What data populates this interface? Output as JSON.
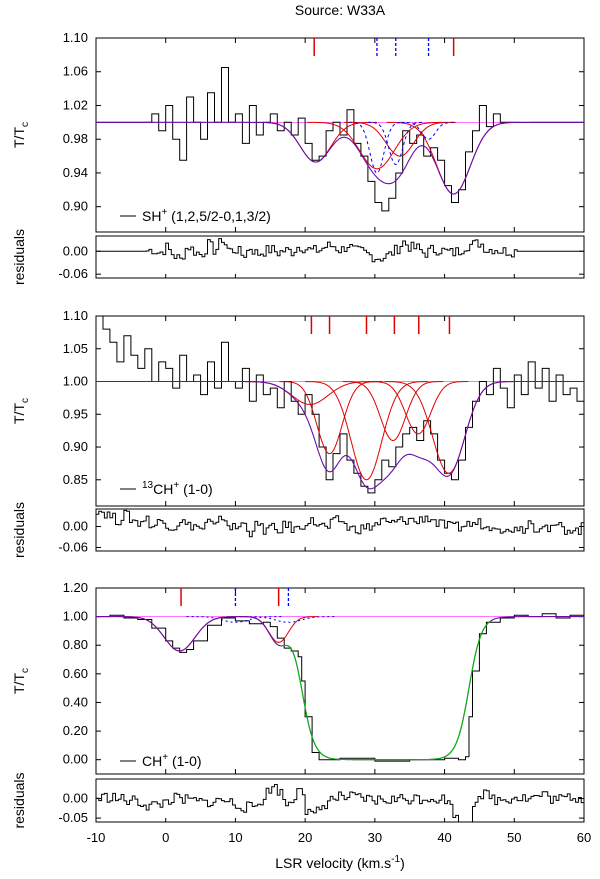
{
  "figure": {
    "title": "Source: W33A"
  },
  "xaxis": {
    "label": "LSR velocity (km.s-1)",
    "label_main": "LSR velocity (km.s",
    "label_sup": "-1",
    "label_close": ")",
    "min": -10,
    "max": 60,
    "ticks": [
      -10,
      0,
      10,
      20,
      30,
      40,
      50,
      60
    ]
  },
  "colors": {
    "data": "#000000",
    "fit_total": "#6a0dad",
    "component": "#e00000",
    "hfs": "#0000ff",
    "baseline": "#ff44ff",
    "alt_fit": "#00bb00"
  },
  "chart_data": [
    {
      "type": "line",
      "name": "SH+ panel",
      "legend_prefix": "SH",
      "legend_sup": "+",
      "legend_suffix": " (1,2,5/2-0,1,3/2)",
      "ylabel_main": "T/T",
      "ylabel_sub": "c",
      "ylim": [
        0.87,
        1.1
      ],
      "yticks": [
        0.9,
        0.94,
        0.98,
        1.02,
        1.06,
        1.1
      ],
      "ytick_labels": [
        "0.90",
        "0.94",
        "0.98",
        "1.02",
        "1.06",
        "1.10"
      ],
      "baseline": 1.0,
      "components": [
        {
          "v": 21.5,
          "depth": 0.047,
          "width": 2.2
        },
        {
          "v": 30.3,
          "depth": 0.055,
          "width": 2.5
        },
        {
          "v": 33.6,
          "depth": 0.04,
          "width": 2.0
        },
        {
          "v": 41.3,
          "depth": 0.085,
          "width": 2.4
        }
      ],
      "hfs_markers": [
        30.3,
        33.0,
        37.7
      ],
      "component_markers": [
        21.3,
        41.3
      ],
      "spectrum": {
        "x": [
          -3,
          -2,
          -1,
          0,
          1,
          2,
          3,
          4,
          5,
          6,
          7,
          8,
          9,
          10,
          11,
          12,
          13,
          14,
          15,
          16,
          17,
          18,
          19,
          20,
          21,
          22,
          23,
          24,
          25,
          26,
          27,
          28,
          29,
          30,
          31,
          32,
          33,
          34,
          35,
          36,
          37,
          38,
          39,
          40,
          41,
          42,
          43,
          44,
          45,
          46,
          47,
          48,
          49,
          50
        ],
        "y": [
          1.0,
          1.01,
          0.99,
          1.02,
          0.98,
          0.955,
          1.03,
          1.0,
          0.98,
          1.035,
          1.0,
          1.065,
          1.0,
          1.01,
          0.975,
          1.02,
          0.985,
          1.0,
          1.01,
          0.99,
          1.0,
          0.985,
          1.005,
          0.975,
          0.955,
          0.96,
          0.99,
          1.0,
          0.985,
          1.015,
          0.975,
          0.96,
          0.93,
          0.905,
          0.895,
          0.91,
          0.94,
          0.99,
          0.975,
          0.985,
          0.96,
          0.97,
          0.955,
          0.925,
          0.905,
          0.92,
          0.965,
          0.99,
          1.02,
          0.995,
          1.01,
          1.0,
          1.0,
          1.0
        ]
      },
      "residuals": {
        "ylim": [
          -0.07,
          0.04
        ],
        "yticks": [
          0.0,
          -0.06
        ],
        "ytick_labels": [
          "0.00",
          "-0.06"
        ]
      }
    },
    {
      "type": "line",
      "name": "13CH+ panel",
      "legend_presup": "13",
      "legend_prefix": "CH",
      "legend_sup": "+",
      "legend_suffix": " (1-0)",
      "ylabel_main": "T/T",
      "ylabel_sub": "c",
      "ylim": [
        0.81,
        1.1
      ],
      "yticks": [
        0.85,
        0.9,
        0.95,
        1.0,
        1.05,
        1.1
      ],
      "ytick_labels": [
        "0.85",
        "0.90",
        "0.95",
        "1.00",
        "1.05",
        "1.10"
      ],
      "baseline": 1.0,
      "components": [
        {
          "v": 20.7,
          "depth": 0.035,
          "width": 2.6
        },
        {
          "v": 23.5,
          "depth": 0.11,
          "width": 1.8
        },
        {
          "v": 28.8,
          "depth": 0.15,
          "width": 2.2
        },
        {
          "v": 32.6,
          "depth": 0.09,
          "width": 1.8
        },
        {
          "v": 36.2,
          "depth": 0.08,
          "width": 1.8
        },
        {
          "v": 40.6,
          "depth": 0.14,
          "width": 2.3
        }
      ],
      "component_markers": [
        20.9,
        23.5,
        28.8,
        32.8,
        36.3,
        40.7
      ],
      "spectrum": {
        "x": [
          -10,
          -9,
          -8,
          -7,
          -6,
          -5,
          -4,
          -3,
          -2,
          -1,
          0,
          1,
          2,
          3,
          4,
          5,
          6,
          7,
          8,
          9,
          10,
          11,
          12,
          13,
          14,
          15,
          16,
          17,
          18,
          19,
          20,
          21,
          22,
          23,
          24,
          25,
          26,
          27,
          28,
          29,
          30,
          31,
          32,
          33,
          34,
          35,
          36,
          37,
          38,
          39,
          40,
          41,
          42,
          43,
          44,
          45,
          46,
          47,
          48,
          49,
          50,
          51,
          52,
          53,
          54,
          55,
          56,
          57,
          58,
          59,
          60
        ],
        "y": [
          1.1,
          1.08,
          1.06,
          1.03,
          1.07,
          1.04,
          1.02,
          1.05,
          1.0,
          1.03,
          1.02,
          0.99,
          1.04,
          1.0,
          1.01,
          0.98,
          1.03,
          0.99,
          1.06,
          1.0,
          0.99,
          1.02,
          0.97,
          1.01,
          0.98,
          0.99,
          0.96,
          1.0,
          0.97,
          0.95,
          0.98,
          0.95,
          0.9,
          0.85,
          0.89,
          0.92,
          0.88,
          0.86,
          0.84,
          0.83,
          0.85,
          0.88,
          0.87,
          0.9,
          0.92,
          0.93,
          0.91,
          0.94,
          0.92,
          0.88,
          0.86,
          0.85,
          0.88,
          0.93,
          0.97,
          1.0,
          0.98,
          1.02,
          0.99,
          0.96,
          1.01,
          0.98,
          1.03,
          0.99,
          1.02,
          0.97,
          1.01,
          0.98,
          0.99,
          0.97,
          1.01
        ]
      },
      "residuals": {
        "ylim": [
          -0.07,
          0.05
        ],
        "yticks": [
          0.0,
          -0.06
        ],
        "ytick_labels": [
          "0.00",
          "-0.06"
        ]
      }
    },
    {
      "type": "line",
      "name": "CH+ panel",
      "legend_prefix": "CH",
      "legend_sup": "+",
      "legend_suffix": " (1-0)",
      "ylabel_main": "T/T",
      "ylabel_sub": "c",
      "ylim": [
        -0.1,
        1.2
      ],
      "yticks": [
        0.0,
        0.2,
        0.4,
        0.6,
        0.8,
        1.0,
        1.2
      ],
      "ytick_labels": [
        "0.00",
        "0.20",
        "0.40",
        "0.60",
        "0.80",
        "1.00",
        "1.20"
      ],
      "baseline": 1.0,
      "components": [
        {
          "v": 2.0,
          "depth": 0.24,
          "width": 2.2
        },
        {
          "v": 16.2,
          "depth": 0.18,
          "width": 1.4
        }
      ],
      "component_markers": [
        2.2,
        16.2
      ],
      "hfs_markers": [
        10.0,
        17.6
      ],
      "saturated": {
        "start": 19.5,
        "end": 43.5,
        "edge_width": 0.9,
        "floor": 0.0
      },
      "spectrum": {
        "x": [
          -10,
          -8,
          -6,
          -4,
          -2,
          0,
          1,
          2,
          3,
          4,
          6,
          8,
          10,
          12,
          14,
          15,
          16,
          17,
          18,
          19,
          19.5,
          20,
          21,
          22,
          25,
          30,
          35,
          40,
          42,
          43,
          43.5,
          44,
          45,
          46,
          48,
          50,
          52,
          54,
          56,
          58,
          60
        ],
        "y": [
          1.0,
          1.01,
          0.99,
          0.98,
          0.92,
          0.83,
          0.78,
          0.75,
          0.77,
          0.83,
          0.94,
          0.99,
          0.97,
          0.95,
          0.96,
          0.93,
          0.85,
          0.78,
          0.76,
          0.72,
          0.55,
          0.3,
          0.05,
          0.0,
          0.01,
          -0.01,
          0.0,
          0.01,
          0.0,
          0.02,
          0.3,
          0.62,
          0.88,
          0.96,
          0.99,
          1.01,
          1.0,
          1.02,
          0.99,
          1.01,
          1.0
        ]
      },
      "residuals": {
        "ylim": [
          -0.06,
          0.05
        ],
        "yticks": [
          0.0,
          -0.05
        ],
        "ytick_labels": [
          "0.00",
          "-0.05"
        ]
      }
    }
  ],
  "residual_label": "residuals"
}
